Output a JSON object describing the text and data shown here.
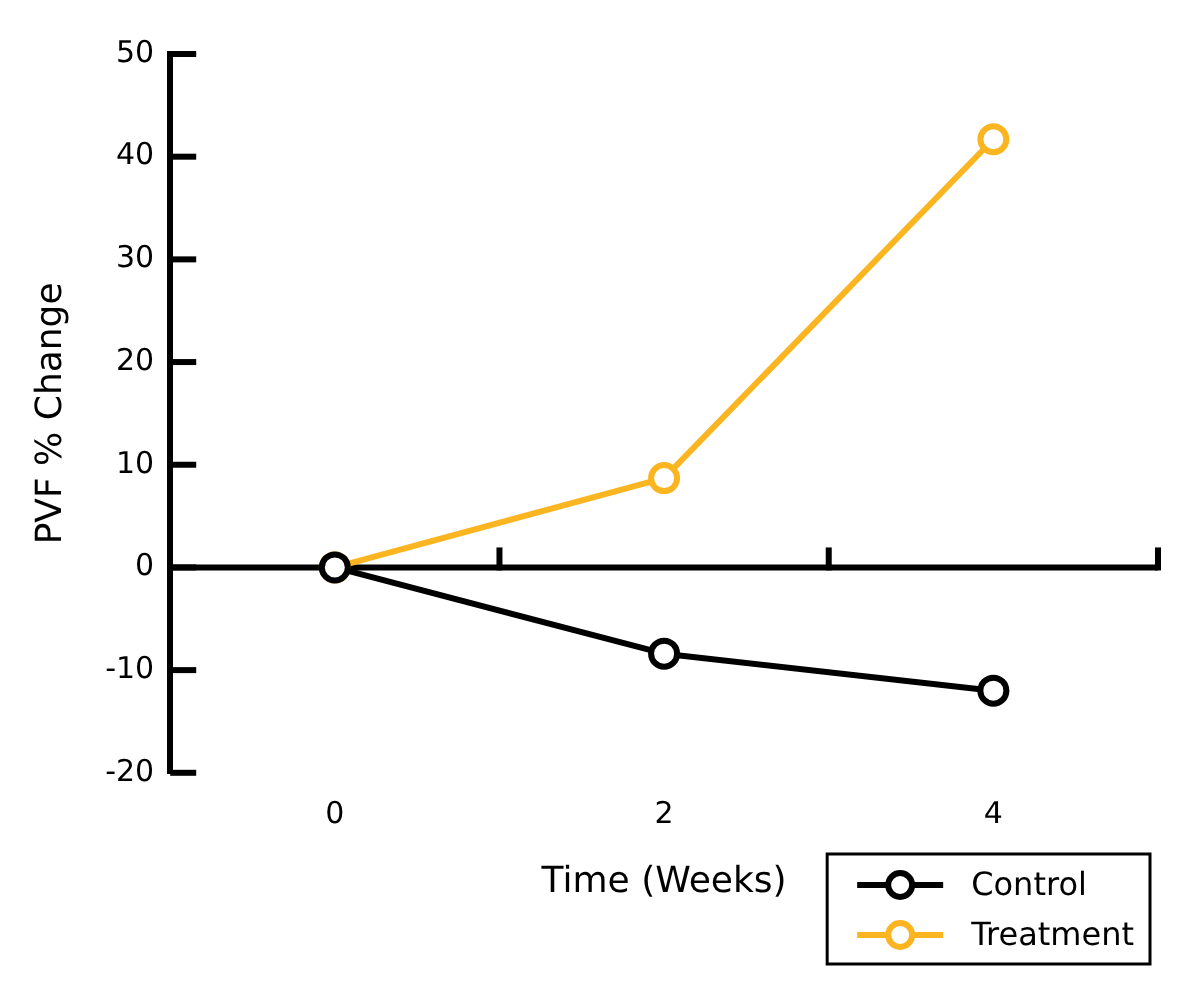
{
  "chart_data": {
    "type": "line",
    "xlabel": "Time (Weeks)",
    "ylabel": "PVF % Change",
    "x": [
      0,
      2,
      4
    ],
    "series": [
      {
        "name": "Control",
        "color": "#000000",
        "values": [
          0,
          -8.4,
          -12
        ]
      },
      {
        "name": "Treatment",
        "color": "#fbb520",
        "values": [
          0,
          8.7,
          41.7
        ]
      }
    ],
    "xlim": [
      -1,
      5
    ],
    "xticks": [
      0,
      {
        "value": 1,
        "label": null
      },
      2,
      {
        "value": 3,
        "label": null
      },
      4,
      {
        "value": 5,
        "label": null
      }
    ],
    "ylim": [
      -20,
      50
    ],
    "yticks": [
      -20,
      -10,
      0,
      10,
      20,
      30,
      40,
      50
    ],
    "legend": "bottom right",
    "marker": "circle",
    "line_style": "solid"
  }
}
